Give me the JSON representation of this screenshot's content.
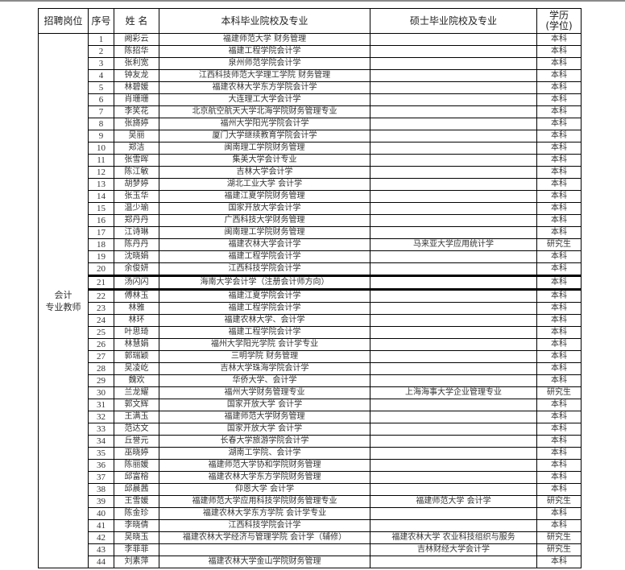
{
  "header": {
    "position": "招聘岗位",
    "no": "序号",
    "name": "姓 名",
    "bachelor": "本科毕业院校及专业",
    "master": "硕士毕业院校及专业",
    "degree_line1": "学历",
    "degree_line2": "(学位)"
  },
  "position": {
    "line1": "会计",
    "line2": "专业教师"
  },
  "rows": [
    {
      "no": "1",
      "name": "阙彩云",
      "bachelor": "福建师范大学 财务管理",
      "master": "",
      "degree": "本科"
    },
    {
      "no": "2",
      "name": "陈招华",
      "bachelor": "福建工程学院会计学",
      "master": "",
      "degree": "本科"
    },
    {
      "no": "3",
      "name": "张利宽",
      "bachelor": "泉州师范学院会计学",
      "master": "",
      "degree": "本科"
    },
    {
      "no": "4",
      "name": "钟友龙",
      "bachelor": "江西科技师范大学理工学院 财务管理",
      "master": "",
      "degree": "本科"
    },
    {
      "no": "5",
      "name": "林碧媛",
      "bachelor": "福建农林大学东方学院会计学",
      "master": "",
      "degree": "本科"
    },
    {
      "no": "6",
      "name": "肖珊珊",
      "bachelor": "大连理工大学会计学",
      "master": "",
      "degree": "本科"
    },
    {
      "no": "7",
      "name": "李笑花",
      "bachelor": "北京航空航天大学北海学院财务管理专业",
      "master": "",
      "degree": "本科"
    },
    {
      "no": "8",
      "name": "张旖婷",
      "bachelor": "福州大学阳光学院会计学",
      "master": "",
      "degree": "本科"
    },
    {
      "no": "9",
      "name": "吴丽",
      "bachelor": "厦门大学继续教育学院会计学",
      "master": "",
      "degree": "本科"
    },
    {
      "no": "10",
      "name": "郑洁",
      "bachelor": "闽南理工学院财务管理",
      "master": "",
      "degree": "本科"
    },
    {
      "no": "11",
      "name": "张雪晖",
      "bachelor": "集美大学会计专业",
      "master": "",
      "degree": "本科"
    },
    {
      "no": "12",
      "name": "陈江敏",
      "bachelor": "吉林大学会计学",
      "master": "",
      "degree": "本科"
    },
    {
      "no": "13",
      "name": "胡梦婷",
      "bachelor": "湖北工业大学  会计学",
      "master": "",
      "degree": "本科"
    },
    {
      "no": "14",
      "name": "张玉华",
      "bachelor": "福建江夏学院财务管理",
      "master": "",
      "degree": "本科"
    },
    {
      "no": "15",
      "name": "温少瑜",
      "bachelor": "国家开放大学会计学",
      "master": "",
      "degree": "本科"
    },
    {
      "no": "16",
      "name": "郑丹丹",
      "bachelor": "广西科技大学财务管理",
      "master": "",
      "degree": "本科"
    },
    {
      "no": "17",
      "name": "江诗琳",
      "bachelor": "闽南理工学院财务管理",
      "master": "",
      "degree": "本科"
    },
    {
      "no": "18",
      "name": "陈丹丹",
      "bachelor": "福建农林大学会计学",
      "master": "马来亚大学应用统计学",
      "degree": "研究生"
    },
    {
      "no": "19",
      "name": "沈晓娟",
      "bachelor": "福建工程学院会计学",
      "master": "",
      "degree": "本科"
    },
    {
      "no": "20",
      "name": "余俊妍",
      "bachelor": "江西科技学院会计学",
      "master": "",
      "degree": "本科"
    },
    {
      "no": "21",
      "name": "汤闪闪",
      "bachelor": "海南大学会计学（注册会计师方向）",
      "master": "",
      "degree": "本科"
    },
    {
      "no": "22",
      "name": "傅林玉",
      "bachelor": "福建江夏学院会计学",
      "master": "",
      "degree": "本科"
    },
    {
      "no": "23",
      "name": "林雅",
      "bachelor": "福建工程学院会计学",
      "master": "",
      "degree": "本科"
    },
    {
      "no": "24",
      "name": "林环",
      "bachelor": "福建农林大学、会计学",
      "master": "",
      "degree": "本科"
    },
    {
      "no": "25",
      "name": "叶思琦",
      "bachelor": "福建工程学院会计学",
      "master": "",
      "degree": "本科"
    },
    {
      "no": "26",
      "name": "林慧娟",
      "bachelor": "福州大学阳光学院  会计学专业",
      "master": "",
      "degree": "本科"
    },
    {
      "no": "27",
      "name": "郭瑞颖",
      "bachelor": "三明学院  财务管理",
      "master": "",
      "degree": "本科"
    },
    {
      "no": "28",
      "name": "吴凌屹",
      "bachelor": "吉林大学珠海学院会计学",
      "master": "",
      "degree": "本科"
    },
    {
      "no": "29",
      "name": "魏欢",
      "bachelor": "华侨大学、会计学",
      "master": "",
      "degree": "本科"
    },
    {
      "no": "30",
      "name": "兰龙耀",
      "bachelor": "福州大学财务管理专业",
      "master": "上海海事大学企业管理专业",
      "degree": "研究生"
    },
    {
      "no": "31",
      "name": "郭文辉",
      "bachelor": "国家开放大学  会计学",
      "master": "",
      "degree": "本科"
    },
    {
      "no": "32",
      "name": "王满玉",
      "bachelor": "福建师范大学财务管理",
      "master": "",
      "degree": "本科"
    },
    {
      "no": "33",
      "name": "范达文",
      "bachelor": "国家开放大学  会计学",
      "master": "",
      "degree": "本科"
    },
    {
      "no": "34",
      "name": "丘誉元",
      "bachelor": "长春大学旅游学院会计学",
      "master": "",
      "degree": "本科"
    },
    {
      "no": "35",
      "name": "巫晓婷",
      "bachelor": "湖南工学院、会计学",
      "master": "",
      "degree": "本科"
    },
    {
      "no": "36",
      "name": "陈丽媛",
      "bachelor": "福建师范大学协和学院财务管理",
      "master": "",
      "degree": "本科"
    },
    {
      "no": "37",
      "name": "邱富榕",
      "bachelor": "福建农林大学东方学院财务管理",
      "master": "",
      "degree": "本科"
    },
    {
      "no": "38",
      "name": "邱晨茜",
      "bachelor": "仰恩大学  会计学",
      "master": "",
      "degree": "本科"
    },
    {
      "no": "39",
      "name": "王雪媛",
      "bachelor": "福建师范大学应用科技学院财务管理专业",
      "master": "福建师范大学  会计学",
      "degree": "研究生"
    },
    {
      "no": "40",
      "name": "陈金珍",
      "bachelor": "福建农林大学东方学院   会计学专业",
      "master": "",
      "degree": "本科"
    },
    {
      "no": "41",
      "name": "李晓倩",
      "bachelor": "江西科技学院会计学",
      "master": "",
      "degree": "本科"
    },
    {
      "no": "42",
      "name": "吴晓玉",
      "bachelor": "福建农林大学经济与管理学院  会计学（辅修）",
      "master": "福建农林大学 农业科技组织与服务",
      "degree": "研究生"
    },
    {
      "no": "43",
      "name": "李菲菲",
      "bachelor": "",
      "master": "吉林财经大学会计学",
      "degree": "研究生"
    },
    {
      "no": "44",
      "name": "刘素萍",
      "bachelor": "福建农林大学金山学院财务管理",
      "master": "",
      "degree": "本科"
    }
  ]
}
